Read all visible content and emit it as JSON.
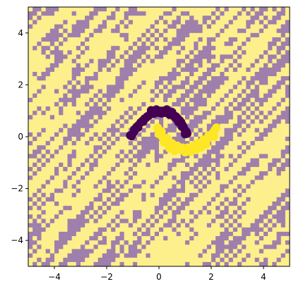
{
  "chart_data": {
    "type": "scatter",
    "title": "",
    "xlabel": "",
    "ylabel": "",
    "xlim": [
      -5,
      5
    ],
    "ylim": [
      -5,
      5
    ],
    "grid": false,
    "legend": "none",
    "background": {
      "kind": "random-class-grid",
      "grid_cells": 60,
      "class_colors": [
        "#9f7fab",
        "#fdef8c"
      ],
      "description_classes": [
        "class-0-purple",
        "class-1-yellow"
      ]
    },
    "x_ticks": [
      {
        "value": -4,
        "label": "−4"
      },
      {
        "value": -2,
        "label": "−2"
      },
      {
        "value": 0,
        "label": "0"
      },
      {
        "value": 2,
        "label": "2"
      },
      {
        "value": 4,
        "label": "4"
      }
    ],
    "y_ticks": [
      {
        "value": -4,
        "label": "−4"
      },
      {
        "value": -2,
        "label": "−2"
      },
      {
        "value": 0,
        "label": "0"
      },
      {
        "value": 2,
        "label": "2"
      },
      {
        "value": 4,
        "label": "4"
      }
    ],
    "series": [
      {
        "color": "#440154",
        "points": [
          [
            -1.05,
            0.02
          ],
          [
            -1.0,
            0.12
          ],
          [
            -0.95,
            0.2
          ],
          [
            -0.9,
            0.3
          ],
          [
            -0.85,
            0.38
          ],
          [
            -0.78,
            0.45
          ],
          [
            -0.7,
            0.55
          ],
          [
            -0.62,
            0.62
          ],
          [
            -0.55,
            0.7
          ],
          [
            -0.45,
            0.78
          ],
          [
            -0.35,
            0.85
          ],
          [
            -0.25,
            0.9
          ],
          [
            -0.15,
            0.95
          ],
          [
            -0.05,
            0.98
          ],
          [
            0.05,
            1.0
          ],
          [
            0.15,
            1.0
          ],
          [
            0.25,
            0.98
          ],
          [
            0.35,
            0.95
          ],
          [
            0.45,
            0.9
          ],
          [
            0.55,
            0.85
          ],
          [
            0.65,
            0.78
          ],
          [
            0.72,
            0.7
          ],
          [
            0.8,
            0.62
          ],
          [
            0.85,
            0.55
          ],
          [
            0.9,
            0.45
          ],
          [
            0.95,
            0.35
          ],
          [
            1.0,
            0.25
          ],
          [
            1.05,
            0.2
          ],
          [
            1.08,
            0.12
          ],
          [
            -0.8,
            0.35
          ],
          [
            -0.6,
            0.58
          ],
          [
            -0.4,
            0.8
          ],
          [
            -0.2,
            0.88
          ],
          [
            0.0,
            0.92
          ],
          [
            0.2,
            0.92
          ],
          [
            0.4,
            0.85
          ],
          [
            0.6,
            0.75
          ],
          [
            0.75,
            0.55
          ],
          [
            0.88,
            0.38
          ],
          [
            -1.1,
            0.05
          ],
          [
            -0.3,
            1.02
          ],
          [
            0.3,
            1.05
          ],
          [
            0.1,
            0.9
          ],
          [
            -0.1,
            1.05
          ],
          [
            0.5,
            0.95
          ],
          [
            0.7,
            0.65
          ],
          [
            1.0,
            0.1
          ],
          [
            -0.95,
            0.28
          ],
          [
            -0.5,
            0.72
          ]
        ]
      },
      {
        "color": "#fde725",
        "points": [
          [
            -0.05,
            0.35
          ],
          [
            0.0,
            0.25
          ],
          [
            0.05,
            0.15
          ],
          [
            0.1,
            0.05
          ],
          [
            0.15,
            -0.05
          ],
          [
            0.22,
            -0.12
          ],
          [
            0.3,
            -0.2
          ],
          [
            0.38,
            -0.28
          ],
          [
            0.45,
            -0.35
          ],
          [
            0.55,
            -0.4
          ],
          [
            0.65,
            -0.45
          ],
          [
            0.75,
            -0.48
          ],
          [
            0.85,
            -0.5
          ],
          [
            0.95,
            -0.5
          ],
          [
            1.05,
            -0.5
          ],
          [
            1.15,
            -0.48
          ],
          [
            1.25,
            -0.45
          ],
          [
            1.35,
            -0.42
          ],
          [
            1.45,
            -0.38
          ],
          [
            1.55,
            -0.32
          ],
          [
            1.65,
            -0.25
          ],
          [
            1.75,
            -0.18
          ],
          [
            1.85,
            -0.1
          ],
          [
            1.92,
            -0.02
          ],
          [
            2.0,
            0.05
          ],
          [
            2.05,
            0.12
          ],
          [
            2.1,
            0.2
          ],
          [
            2.15,
            0.28
          ],
          [
            2.2,
            0.35
          ],
          [
            0.1,
            0.2
          ],
          [
            0.3,
            -0.05
          ],
          [
            0.5,
            -0.25
          ],
          [
            0.7,
            -0.35
          ],
          [
            0.9,
            -0.42
          ],
          [
            1.1,
            -0.42
          ],
          [
            1.3,
            -0.35
          ],
          [
            1.5,
            -0.25
          ],
          [
            1.7,
            -0.12
          ],
          [
            1.9,
            0.05
          ],
          [
            0.2,
            -0.22
          ],
          [
            0.6,
            -0.55
          ],
          [
            1.0,
            -0.6
          ],
          [
            1.4,
            -0.52
          ],
          [
            1.8,
            -0.3
          ],
          [
            2.1,
            0.0
          ],
          [
            0.0,
            0.1
          ],
          [
            0.4,
            -0.45
          ],
          [
            1.2,
            -0.58
          ],
          [
            1.6,
            -0.42
          ]
        ]
      }
    ]
  }
}
